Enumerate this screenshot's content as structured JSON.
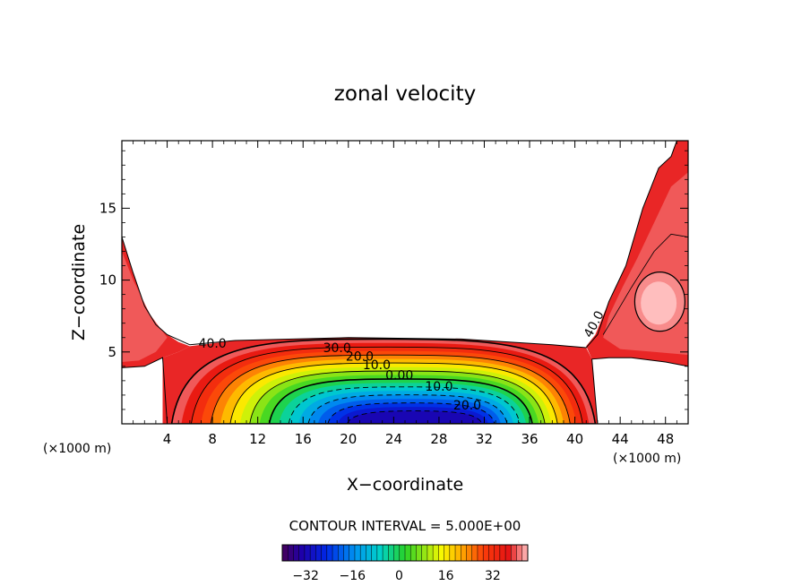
{
  "chart_data": {
    "type": "contour",
    "title": "zonal velocity",
    "xlabel": "X−coordinate",
    "ylabel": "Z−coordinate",
    "x_unit_left": "(×1000 m)",
    "x_unit_right": "(×1000 m)",
    "xlim": [
      0,
      50
    ],
    "ylim": [
      0,
      19.7
    ],
    "x_ticks": [
      4,
      8,
      12,
      16,
      20,
      24,
      28,
      32,
      36,
      40,
      44,
      48
    ],
    "y_ticks": [
      5,
      10,
      15
    ],
    "contour_interval_text": "CONTOUR INTERVAL = 5.000E+00",
    "contour_labels": [
      {
        "text": "40.0",
        "x": 8.0,
        "y": 5.3
      },
      {
        "text": "30.0",
        "x": 19.0,
        "y": 5.0
      },
      {
        "text": "20.0",
        "x": 21.0,
        "y": 4.4
      },
      {
        "text": "10.0",
        "x": 22.5,
        "y": 3.8
      },
      {
        "text": "0.00",
        "x": 24.5,
        "y": 3.1
      },
      {
        "text": "10.0",
        "x": 28.0,
        "y": 2.3
      },
      {
        "text": "20.0",
        "x": 30.5,
        "y": 1.0
      },
      {
        "text": "40.0",
        "x": 42.0,
        "y": 6.8
      }
    ],
    "colorbar": {
      "range": [
        -40,
        44
      ],
      "ticks": [
        -32,
        -16,
        0,
        16,
        32
      ],
      "tick_labels": [
        "−32",
        "−16",
        "0",
        "16",
        "32"
      ]
    },
    "grid": false
  },
  "colors": {
    "deep_red": "#ee2200",
    "mid_red": "#f45840",
    "pale_red": "#fb9d8a",
    "outline": "#000000"
  }
}
